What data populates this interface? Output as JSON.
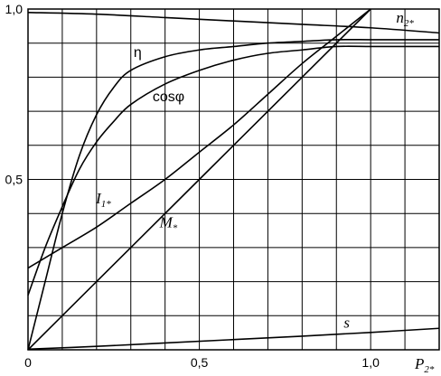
{
  "chart_data": {
    "type": "line",
    "title": "",
    "xlabel": {
      "main": "P",
      "sub": "2*"
    },
    "ylabel": "",
    "xlim": [
      0,
      1.2
    ],
    "ylim": [
      0,
      1.0
    ],
    "x_ticks": [
      {
        "value": 0.5,
        "label": "0,5"
      },
      {
        "value": 1.0,
        "label": "1,0"
      }
    ],
    "x_origin_label": "0",
    "y_ticks": [
      {
        "value": 0.5,
        "label": "0,5"
      },
      {
        "value": 1.0,
        "label": "1,0"
      }
    ],
    "grid": true,
    "grid_x_step": 0.1,
    "grid_y_step": 0.1,
    "series": [
      {
        "name": "η",
        "label_main": "η",
        "label_sub": "",
        "italic": false,
        "label_at": [
          0.32,
          0.86
        ],
        "points": [
          [
            0,
            0
          ],
          [
            0.05,
            0.2
          ],
          [
            0.1,
            0.4
          ],
          [
            0.15,
            0.57
          ],
          [
            0.2,
            0.69
          ],
          [
            0.25,
            0.77
          ],
          [
            0.3,
            0.82
          ],
          [
            0.4,
            0.86
          ],
          [
            0.5,
            0.88
          ],
          [
            0.6,
            0.89
          ],
          [
            0.7,
            0.9
          ],
          [
            0.8,
            0.905
          ],
          [
            0.9,
            0.91
          ],
          [
            1.0,
            0.91
          ],
          [
            1.1,
            0.91
          ],
          [
            1.2,
            0.91
          ]
        ]
      },
      {
        "name": "cosφ",
        "label_main": "cosφ",
        "label_sub": "",
        "italic": false,
        "label_at": [
          0.41,
          0.73
        ],
        "points": [
          [
            0,
            0.16
          ],
          [
            0.05,
            0.3
          ],
          [
            0.1,
            0.42
          ],
          [
            0.15,
            0.53
          ],
          [
            0.2,
            0.61
          ],
          [
            0.25,
            0.67
          ],
          [
            0.3,
            0.72
          ],
          [
            0.4,
            0.78
          ],
          [
            0.5,
            0.82
          ],
          [
            0.6,
            0.85
          ],
          [
            0.7,
            0.87
          ],
          [
            0.8,
            0.88
          ],
          [
            0.9,
            0.89
          ],
          [
            1.0,
            0.89
          ],
          [
            1.1,
            0.89
          ],
          [
            1.2,
            0.89
          ]
        ]
      },
      {
        "name": "I1*",
        "label_main": "I",
        "label_sub": "1*",
        "italic": true,
        "label_at": [
          0.22,
          0.43
        ],
        "points": [
          [
            0,
            0.24
          ],
          [
            0.1,
            0.3
          ],
          [
            0.2,
            0.36
          ],
          [
            0.3,
            0.43
          ],
          [
            0.4,
            0.5
          ],
          [
            0.5,
            0.58
          ],
          [
            0.6,
            0.66
          ],
          [
            0.7,
            0.75
          ],
          [
            0.8,
            0.84
          ],
          [
            0.9,
            0.92
          ],
          [
            1.0,
            1.0
          ]
        ]
      },
      {
        "name": "M*",
        "label_main": "M",
        "label_sub": "*",
        "italic": true,
        "label_at": [
          0.41,
          0.36
        ],
        "points": [
          [
            0,
            0
          ],
          [
            0.5,
            0.5
          ],
          [
            1.0,
            1.0
          ]
        ]
      },
      {
        "name": "n2*",
        "label_main": "n",
        "label_sub": "2*",
        "italic": true,
        "label_at": [
          1.1,
          0.96
        ],
        "points": [
          [
            0,
            0.99
          ],
          [
            0.2,
            0.985
          ],
          [
            0.4,
            0.975
          ],
          [
            0.6,
            0.965
          ],
          [
            0.8,
            0.955
          ],
          [
            1.0,
            0.945
          ],
          [
            1.2,
            0.93
          ]
        ]
      },
      {
        "name": "s",
        "label_main": "s",
        "label_sub": "",
        "italic": true,
        "label_at": [
          0.93,
          0.065
        ],
        "points": [
          [
            0,
            0.002
          ],
          [
            0.2,
            0.01
          ],
          [
            0.4,
            0.02
          ],
          [
            0.6,
            0.03
          ],
          [
            0.8,
            0.04
          ],
          [
            1.0,
            0.051
          ],
          [
            1.2,
            0.063
          ]
        ]
      }
    ]
  }
}
